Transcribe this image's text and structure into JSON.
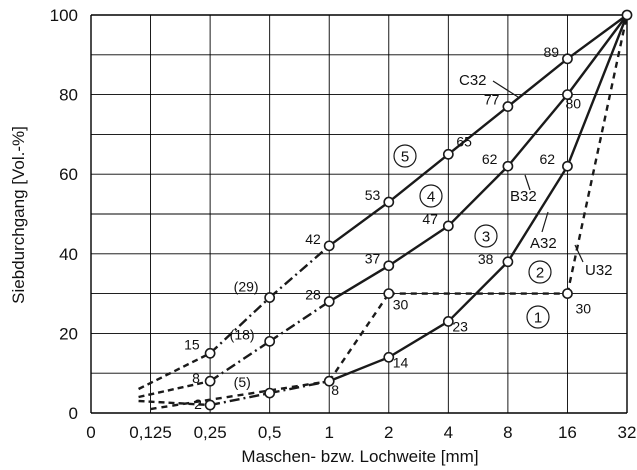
{
  "chart_data": {
    "type": "line",
    "xlabel": "Maschen- bzw. Lochweite [mm]",
    "ylabel": "Siebdurchgang [Vol.-%]",
    "x_ticks": [
      "0",
      "0,125",
      "0,25",
      "0,5",
      "1",
      "2",
      "4",
      "8",
      "16",
      "32"
    ],
    "y_ticks": [
      "0",
      "20",
      "40",
      "60",
      "80",
      "100"
    ],
    "ylim": [
      0,
      100
    ],
    "grid": true,
    "series": [
      {
        "name": "C32",
        "number": "5",
        "style": "solid",
        "x": [
          0.25,
          0.5,
          1,
          2,
          4,
          8,
          16,
          32
        ],
        "values": [
          15,
          29,
          42,
          53,
          65,
          77,
          89,
          100
        ],
        "point_labels": [
          "15",
          "(29)",
          "42",
          "53",
          "65",
          "77",
          "89",
          ""
        ]
      },
      {
        "name": "B32",
        "number": "4",
        "style": "solid",
        "x": [
          0.25,
          0.5,
          1,
          2,
          4,
          8,
          16,
          32
        ],
        "values": [
          8,
          18,
          28,
          37,
          47,
          62,
          80,
          100
        ],
        "point_labels": [
          "8",
          "(18)",
          "28",
          "37",
          "47",
          "62",
          "80",
          ""
        ]
      },
      {
        "name": "A32",
        "number": "3",
        "style": "solid",
        "x": [
          0.25,
          0.5,
          1,
          2,
          4,
          8,
          16,
          32
        ],
        "values": [
          2,
          5,
          8,
          14,
          23,
          38,
          62,
          100
        ],
        "point_labels": [
          "2",
          "(5)",
          "8",
          "14",
          "23",
          "38",
          "62",
          ""
        ]
      },
      {
        "name": "U32",
        "number": "2",
        "style": "dashed",
        "x": [
          0.125,
          1,
          2,
          16,
          32
        ],
        "values": [
          1,
          8,
          30,
          30,
          100
        ],
        "point_labels": [
          "",
          "",
          "30",
          "30",
          ""
        ]
      }
    ],
    "region_markers": [
      "1"
    ]
  }
}
